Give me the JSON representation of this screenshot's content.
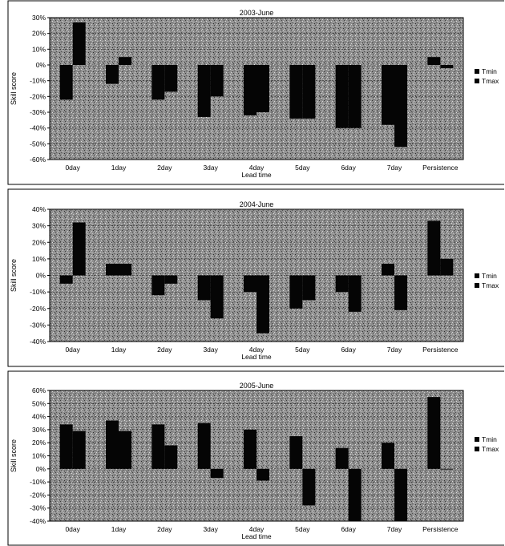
{
  "colors": {
    "plot_bg": "#8f8f8f",
    "bar": "#050505",
    "frame": "#000000",
    "page": "#ffffff"
  },
  "chart_data": [
    {
      "type": "bar",
      "title": "2003-June",
      "xlabel": "Lead time",
      "ylabel": "Skill score",
      "ylim": [
        -60,
        30
      ],
      "yticks": [
        "-60%",
        "-50%",
        "-40%",
        "-30%",
        "-20%",
        "-10%",
        "0%",
        "10%",
        "20%",
        "30%"
      ],
      "categories": [
        "0day",
        "1day",
        "2day",
        "3day",
        "4day",
        "5day",
        "6day",
        "7day",
        "Persistence"
      ],
      "legend_position": "right",
      "series": [
        {
          "name": "Tmin",
          "values": [
            -22,
            -12,
            -22,
            -33,
            -32,
            -34,
            -40,
            -38,
            5
          ]
        },
        {
          "name": "Tmax",
          "values": [
            27,
            5,
            -17,
            -20,
            -30,
            -34,
            -40,
            -52,
            -2
          ]
        }
      ]
    },
    {
      "type": "bar",
      "title": "2004-June",
      "xlabel": "Lead time",
      "ylabel": "Skill score",
      "ylim": [
        -40,
        40
      ],
      "yticks": [
        "-40%",
        "-30%",
        "-20%",
        "-10%",
        "0%",
        "10%",
        "20%",
        "30%",
        "40%"
      ],
      "categories": [
        "0day",
        "1day",
        "2day",
        "3day",
        "4day",
        "5day",
        "6day",
        "7day",
        "Persistence"
      ],
      "legend_position": "right",
      "series": [
        {
          "name": "Tmin",
          "values": [
            -5,
            7,
            -12,
            -15,
            -10,
            -20,
            -10,
            7,
            33
          ]
        },
        {
          "name": "Tmax",
          "values": [
            32,
            7,
            -5,
            -26,
            -35,
            -15,
            -22,
            -21,
            10
          ]
        }
      ]
    },
    {
      "type": "bar",
      "title": "2005-June",
      "xlabel": "Lead time",
      "ylabel": "Skill score",
      "ylim": [
        -40,
        60
      ],
      "yticks": [
        "-40%",
        "-30%",
        "-20%",
        "-10%",
        "0%",
        "10%",
        "20%",
        "30%",
        "40%",
        "50%",
        "60%"
      ],
      "categories": [
        "0day",
        "1day",
        "2day",
        "3day",
        "4day",
        "5day",
        "6day",
        "7day",
        "Persistence"
      ],
      "legend_position": "right",
      "series": [
        {
          "name": "Tmin",
          "values": [
            34,
            37,
            34,
            35,
            30,
            25,
            16,
            20,
            55
          ]
        },
        {
          "name": "Tmax",
          "values": [
            29,
            29,
            18,
            -7,
            -9,
            -28,
            -40,
            -40,
            0
          ]
        }
      ]
    }
  ]
}
